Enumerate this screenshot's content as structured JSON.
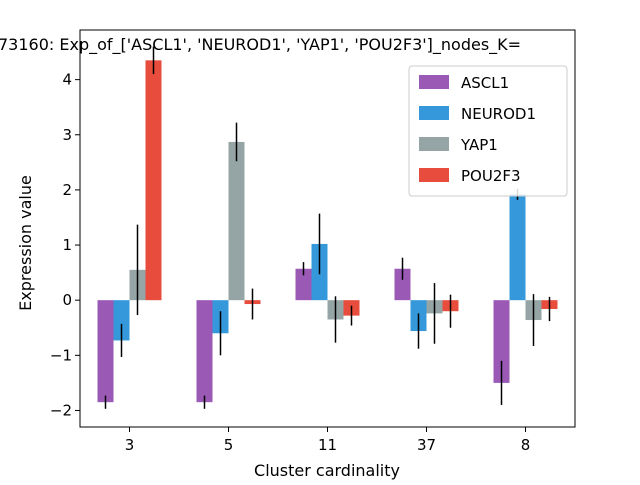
{
  "chart_data": {
    "type": "bar",
    "title": "73160: Exp_of_['ASCL1', 'NEUROD1', 'YAP1', 'POU2F3']_nodes_K=",
    "xlabel": "Cluster cardinality",
    "ylabel": "Expression value",
    "categories": [
      "3",
      "5",
      "11",
      "37",
      "8"
    ],
    "ylim": [
      -2.3,
      4.9
    ],
    "yticks": [
      -2,
      -1,
      0,
      1,
      2,
      3,
      4
    ],
    "ytick_labels": [
      "−2",
      "−1",
      "0",
      "1",
      "2",
      "3",
      "4"
    ],
    "legend_position": "top-right",
    "grid": false,
    "error_bars": true,
    "series": [
      {
        "name": "ASCL1",
        "color": "#9b59b6",
        "values": [
          -1.85,
          -1.85,
          0.57,
          0.57,
          -1.5
        ],
        "errors": [
          0.12,
          0.12,
          0.12,
          0.2,
          0.4
        ]
      },
      {
        "name": "NEUROD1",
        "color": "#3498db",
        "values": [
          -0.73,
          -0.6,
          1.02,
          -0.56,
          1.92
        ],
        "errors": [
          0.3,
          0.4,
          0.55,
          0.32,
          0.1
        ]
      },
      {
        "name": "YAP1",
        "color": "#95a5a6",
        "values": [
          0.55,
          2.87,
          -0.35,
          -0.24,
          -0.36
        ],
        "errors": [
          0.82,
          0.35,
          0.42,
          0.55,
          0.47
        ]
      },
      {
        "name": "POU2F3",
        "color": "#e74c3c",
        "values": [
          4.35,
          -0.07,
          -0.28,
          -0.2,
          -0.16
        ],
        "errors": [
          0.25,
          0.28,
          0.18,
          0.3,
          0.22
        ]
      }
    ]
  }
}
